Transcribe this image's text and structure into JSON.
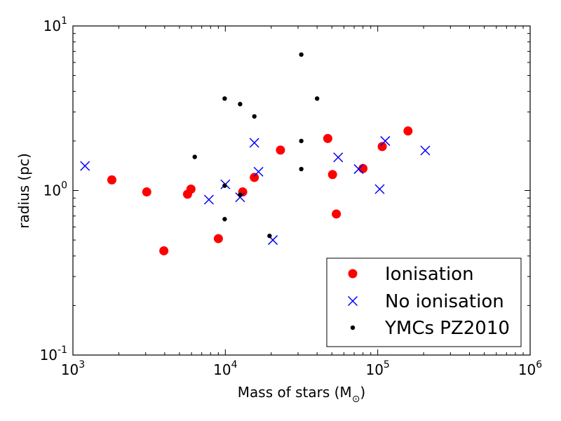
{
  "chart_data": {
    "type": "scatter",
    "title": "",
    "xlabel": "Mass of stars (M",
    "xlabel_sub": "⊙",
    "xlabel_close": ")",
    "ylabel": "radius (pc)",
    "xscale": "log",
    "yscale": "log",
    "xlim": [
      1000,
      1000000
    ],
    "ylim": [
      0.1,
      10
    ],
    "xticks": [
      {
        "value": 1000,
        "base": "10",
        "exp": "3"
      },
      {
        "value": 10000,
        "base": "10",
        "exp": "4"
      },
      {
        "value": 100000,
        "base": "10",
        "exp": "5"
      },
      {
        "value": 1000000,
        "base": "10",
        "exp": "6"
      }
    ],
    "yticks": [
      {
        "value": 0.1,
        "base": "10",
        "exp": "-1"
      },
      {
        "value": 1,
        "base": "10",
        "exp": "0"
      },
      {
        "value": 10,
        "base": "10",
        "exp": "1"
      }
    ],
    "legend_position": "lower-right",
    "series": [
      {
        "name": "Ionisation",
        "marker": "circle",
        "color": "#ff0000",
        "points": [
          [
            1800,
            1.16
          ],
          [
            3050,
            0.98
          ],
          [
            3950,
            0.43
          ],
          [
            5650,
            0.95
          ],
          [
            5950,
            1.02
          ],
          [
            9000,
            0.51
          ],
          [
            13000,
            0.98
          ],
          [
            15500,
            1.2
          ],
          [
            23000,
            1.76
          ],
          [
            47000,
            2.07
          ],
          [
            50500,
            1.25
          ],
          [
            53500,
            0.72
          ],
          [
            80000,
            1.36
          ],
          [
            107000,
            1.85
          ],
          [
            158000,
            2.3
          ]
        ]
      },
      {
        "name": "No ionisation",
        "marker": "x",
        "color": "#0000ff",
        "points": [
          [
            1200,
            1.41
          ],
          [
            7800,
            0.88
          ],
          [
            10000,
            1.09
          ],
          [
            12500,
            0.91
          ],
          [
            15500,
            1.95
          ],
          [
            16500,
            1.3
          ],
          [
            20500,
            0.5
          ],
          [
            55000,
            1.59
          ],
          [
            75000,
            1.35
          ],
          [
            103000,
            1.02
          ],
          [
            112000,
            2.0
          ],
          [
            205000,
            1.75
          ]
        ]
      },
      {
        "name": "YMCs PZ2010",
        "marker": "dot",
        "color": "#000000",
        "points": [
          [
            6300,
            1.6
          ],
          [
            9900,
            3.62
          ],
          [
            9900,
            1.07
          ],
          [
            9900,
            0.67
          ],
          [
            12500,
            3.35
          ],
          [
            12500,
            0.94
          ],
          [
            15500,
            2.82
          ],
          [
            19500,
            0.53
          ],
          [
            31500,
            6.7
          ],
          [
            31500,
            2.0
          ],
          [
            31500,
            1.35
          ],
          [
            40000,
            3.62
          ]
        ]
      }
    ]
  }
}
